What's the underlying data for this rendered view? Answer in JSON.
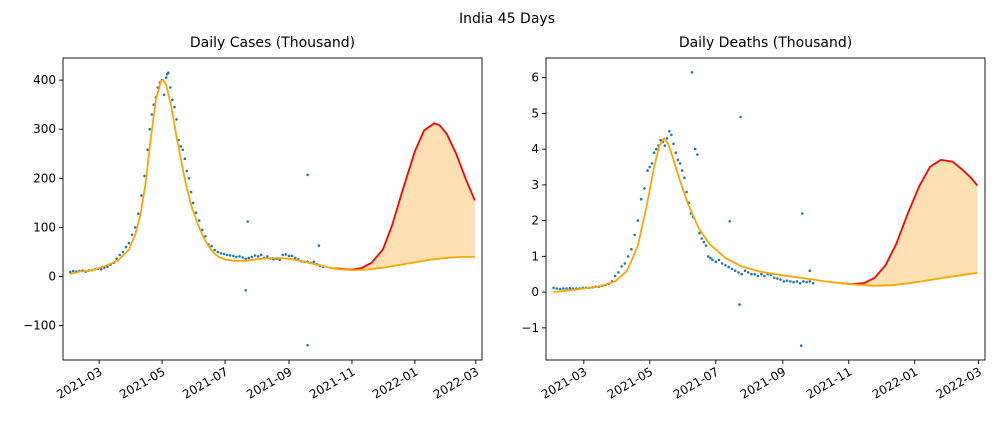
{
  "figure": {
    "suptitle": "India 45 Days"
  },
  "colors": {
    "observed": "#1f77b4",
    "fit": "#ffa500",
    "projection": "#ff0000",
    "band": "#ffe0b3"
  },
  "chart_data": [
    {
      "type": "scatter",
      "title": "Daily Cases (Thousand)",
      "xlabel": "",
      "ylabel": "",
      "x_axis": "date",
      "xlim": [
        "2021-01-25",
        "2022-03-07"
      ],
      "ylim": [
        -170,
        445
      ],
      "yticks": [
        -100,
        0,
        100,
        200,
        300,
        400
      ],
      "xticks": [
        "2021-03-01",
        "2021-05-01",
        "2021-07-01",
        "2021-09-01",
        "2021-11-01",
        "2022-01-01",
        "2022-03-01"
      ],
      "xtick_labels": [
        "2021-03",
        "2021-05",
        "2021-07",
        "2021-09",
        "2021-11",
        "2022-01",
        "2022-03"
      ],
      "observed_points": [
        [
          "2021-02-01",
          9
        ],
        [
          "2021-02-04",
          11
        ],
        [
          "2021-02-07",
          10
        ],
        [
          "2021-02-10",
          11
        ],
        [
          "2021-02-13",
          12
        ],
        [
          "2021-02-16",
          10
        ],
        [
          "2021-02-19",
          12
        ],
        [
          "2021-02-22",
          13
        ],
        [
          "2021-02-25",
          15
        ],
        [
          "2021-02-28",
          16
        ],
        [
          "2021-03-03",
          15
        ],
        [
          "2021-03-06",
          18
        ],
        [
          "2021-03-09",
          20
        ],
        [
          "2021-03-12",
          24
        ],
        [
          "2021-03-15",
          28
        ],
        [
          "2021-03-18",
          36
        ],
        [
          "2021-03-21",
          44
        ],
        [
          "2021-03-24",
          50
        ],
        [
          "2021-03-27",
          60
        ],
        [
          "2021-03-30",
          68
        ],
        [
          "2021-04-02",
          85
        ],
        [
          "2021-04-05",
          100
        ],
        [
          "2021-04-08",
          128
        ],
        [
          "2021-04-11",
          165
        ],
        [
          "2021-04-14",
          205
        ],
        [
          "2021-04-17",
          258
        ],
        [
          "2021-04-19",
          300
        ],
        [
          "2021-04-21",
          330
        ],
        [
          "2021-04-23",
          350
        ],
        [
          "2021-04-25",
          365
        ],
        [
          "2021-04-27",
          385
        ],
        [
          "2021-04-29",
          395
        ],
        [
          "2021-05-01",
          400
        ],
        [
          "2021-05-03",
          370
        ],
        [
          "2021-05-05",
          405
        ],
        [
          "2021-05-06",
          412
        ],
        [
          "2021-05-07",
          415
        ],
        [
          "2021-05-09",
          385
        ],
        [
          "2021-05-11",
          360
        ],
        [
          "2021-05-13",
          345
        ],
        [
          "2021-05-15",
          320
        ],
        [
          "2021-05-17",
          278
        ],
        [
          "2021-05-19",
          265
        ],
        [
          "2021-05-21",
          258
        ],
        [
          "2021-05-23",
          240
        ],
        [
          "2021-05-25",
          215
        ],
        [
          "2021-05-27",
          200
        ],
        [
          "2021-05-29",
          172
        ],
        [
          "2021-05-31",
          150
        ],
        [
          "2021-06-03",
          130
        ],
        [
          "2021-06-06",
          114
        ],
        [
          "2021-06-09",
          95
        ],
        [
          "2021-06-12",
          82
        ],
        [
          "2021-06-15",
          65
        ],
        [
          "2021-06-18",
          62
        ],
        [
          "2021-06-21",
          54
        ],
        [
          "2021-06-24",
          50
        ],
        [
          "2021-06-27",
          47
        ],
        [
          "2021-06-30",
          46
        ],
        [
          "2021-07-03",
          44
        ],
        [
          "2021-07-06",
          43
        ],
        [
          "2021-07-09",
          42
        ],
        [
          "2021-07-12",
          40
        ],
        [
          "2021-07-15",
          41
        ],
        [
          "2021-07-18",
          39
        ],
        [
          "2021-07-21",
          36
        ],
        [
          "2021-07-24",
          38
        ],
        [
          "2021-07-27",
          40
        ],
        [
          "2021-07-30",
          43
        ],
        [
          "2021-08-02",
          41
        ],
        [
          "2021-08-05",
          44
        ],
        [
          "2021-08-08",
          38
        ],
        [
          "2021-08-11",
          41
        ],
        [
          "2021-08-14",
          37
        ],
        [
          "2021-08-17",
          35
        ],
        [
          "2021-08-20",
          36
        ],
        [
          "2021-08-23",
          34
        ],
        [
          "2021-08-26",
          44
        ],
        [
          "2021-08-29",
          45
        ],
        [
          "2021-09-01",
          42
        ],
        [
          "2021-09-04",
          42
        ],
        [
          "2021-09-07",
          38
        ],
        [
          "2021-09-10",
          35
        ],
        [
          "2021-09-13",
          31
        ],
        [
          "2021-09-16",
          30
        ],
        [
          "2021-09-19",
          30
        ],
        [
          "2021-09-22",
          28
        ],
        [
          "2021-09-25",
          30
        ],
        [
          "2021-09-28",
          25
        ],
        [
          "2021-10-01",
          22
        ],
        [
          "2021-10-04",
          20
        ],
        [
          "2021-07-23",
          112
        ],
        [
          "2021-07-21",
          -28
        ],
        [
          "2021-09-19",
          207
        ],
        [
          "2021-09-19",
          -140
        ],
        [
          "2021-09-30",
          63
        ]
      ],
      "fit_curve": [
        [
          "2021-02-01",
          5
        ],
        [
          "2021-02-10",
          10
        ],
        [
          "2021-02-20",
          12
        ],
        [
          "2021-03-01",
          17
        ],
        [
          "2021-03-10",
          24
        ],
        [
          "2021-03-20",
          34
        ],
        [
          "2021-03-30",
          55
        ],
        [
          "2021-04-05",
          85
        ],
        [
          "2021-04-10",
          125
        ],
        [
          "2021-04-15",
          190
        ],
        [
          "2021-04-20",
          280
        ],
        [
          "2021-04-25",
          360
        ],
        [
          "2021-04-30",
          398
        ],
        [
          "2021-05-02",
          400
        ],
        [
          "2021-05-05",
          390
        ],
        [
          "2021-05-10",
          345
        ],
        [
          "2021-05-15",
          285
        ],
        [
          "2021-05-20",
          230
        ],
        [
          "2021-05-25",
          180
        ],
        [
          "2021-05-30",
          140
        ],
        [
          "2021-06-05",
          105
        ],
        [
          "2021-06-10",
          80
        ],
        [
          "2021-06-15",
          62
        ],
        [
          "2021-06-20",
          48
        ],
        [
          "2021-06-25",
          40
        ],
        [
          "2021-07-01",
          35
        ],
        [
          "2021-07-10",
          32
        ],
        [
          "2021-07-20",
          32
        ],
        [
          "2021-08-01",
          35
        ],
        [
          "2021-08-10",
          37
        ],
        [
          "2021-08-20",
          38
        ],
        [
          "2021-09-01",
          36
        ],
        [
          "2021-09-10",
          33
        ],
        [
          "2021-09-20",
          28
        ],
        [
          "2021-10-01",
          23
        ],
        [
          "2021-10-10",
          18
        ],
        [
          "2021-10-20",
          15
        ],
        [
          "2021-11-01",
          13
        ],
        [
          "2021-11-15",
          14
        ],
        [
          "2021-12-01",
          18
        ],
        [
          "2021-12-15",
          23
        ],
        [
          "2022-01-01",
          29
        ],
        [
          "2022-01-15",
          34
        ],
        [
          "2022-02-01",
          38
        ],
        [
          "2022-02-15",
          40
        ],
        [
          "2022-02-28",
          40
        ]
      ],
      "projection_curve": [
        [
          "2021-10-15",
          17
        ],
        [
          "2021-10-25",
          15
        ],
        [
          "2021-11-01",
          14
        ],
        [
          "2021-11-10",
          17
        ],
        [
          "2021-11-20",
          28
        ],
        [
          "2021-12-01",
          55
        ],
        [
          "2021-12-10",
          105
        ],
        [
          "2021-12-20",
          175
        ],
        [
          "2022-01-01",
          255
        ],
        [
          "2022-01-10",
          298
        ],
        [
          "2022-01-20",
          312
        ],
        [
          "2022-01-25",
          308
        ],
        [
          "2022-02-01",
          290
        ],
        [
          "2022-02-10",
          250
        ],
        [
          "2022-02-20",
          195
        ],
        [
          "2022-02-28",
          155
        ]
      ]
    },
    {
      "type": "scatter",
      "title": "Daily Deaths (Thousand)",
      "xlabel": "",
      "ylabel": "",
      "x_axis": "date",
      "xlim": [
        "2021-01-25",
        "2022-03-07"
      ],
      "ylim": [
        -1.9,
        6.55
      ],
      "yticks": [
        -1,
        0,
        1,
        2,
        3,
        4,
        5,
        6
      ],
      "xticks": [
        "2021-03-01",
        "2021-05-01",
        "2021-07-01",
        "2021-09-01",
        "2021-11-01",
        "2022-01-01",
        "2022-03-01"
      ],
      "xtick_labels": [
        "2021-03",
        "2021-05",
        "2021-07",
        "2021-09",
        "2021-11",
        "2022-01",
        "2022-03"
      ],
      "observed_points": [
        [
          "2021-02-01",
          0.12
        ],
        [
          "2021-02-04",
          0.1
        ],
        [
          "2021-02-07",
          0.09
        ],
        [
          "2021-02-10",
          0.1
        ],
        [
          "2021-02-13",
          0.1
        ],
        [
          "2021-02-16",
          0.11
        ],
        [
          "2021-02-19",
          0.1
        ],
        [
          "2021-02-22",
          0.1
        ],
        [
          "2021-02-25",
          0.1
        ],
        [
          "2021-02-28",
          0.12
        ],
        [
          "2021-03-03",
          0.12
        ],
        [
          "2021-03-06",
          0.12
        ],
        [
          "2021-03-09",
          0.13
        ],
        [
          "2021-03-12",
          0.15
        ],
        [
          "2021-03-15",
          0.15
        ],
        [
          "2021-03-18",
          0.18
        ],
        [
          "2021-03-21",
          0.2
        ],
        [
          "2021-03-24",
          0.23
        ],
        [
          "2021-03-27",
          0.3
        ],
        [
          "2021-03-30",
          0.45
        ],
        [
          "2021-04-02",
          0.55
        ],
        [
          "2021-04-05",
          0.72
        ],
        [
          "2021-04-08",
          0.8
        ],
        [
          "2021-04-11",
          1.0
        ],
        [
          "2021-04-14",
          1.2
        ],
        [
          "2021-04-17",
          1.6
        ],
        [
          "2021-04-20",
          2.0
        ],
        [
          "2021-04-23",
          2.6
        ],
        [
          "2021-04-26",
          2.9
        ],
        [
          "2021-04-29",
          3.4
        ],
        [
          "2021-05-01",
          3.5
        ],
        [
          "2021-05-03",
          3.6
        ],
        [
          "2021-05-05",
          3.9
        ],
        [
          "2021-05-07",
          4.0
        ],
        [
          "2021-05-09",
          4.1
        ],
        [
          "2021-05-11",
          4.25
        ],
        [
          "2021-05-13",
          4.2
        ],
        [
          "2021-05-15",
          4.1
        ],
        [
          "2021-05-17",
          4.3
        ],
        [
          "2021-05-19",
          4.5
        ],
        [
          "2021-05-21",
          4.4
        ],
        [
          "2021-05-23",
          4.15
        ],
        [
          "2021-05-25",
          3.9
        ],
        [
          "2021-05-27",
          3.7
        ],
        [
          "2021-05-29",
          3.6
        ],
        [
          "2021-05-31",
          3.4
        ],
        [
          "2021-06-02",
          3.2
        ],
        [
          "2021-06-04",
          2.8
        ],
        [
          "2021-06-06",
          2.5
        ],
        [
          "2021-06-08",
          2.2
        ],
        [
          "2021-06-10",
          2.1
        ],
        [
          "2021-06-12",
          4.0
        ],
        [
          "2021-06-14",
          3.85
        ],
        [
          "2021-06-16",
          1.65
        ],
        [
          "2021-06-18",
          1.5
        ],
        [
          "2021-06-20",
          1.4
        ],
        [
          "2021-06-22",
          1.3
        ],
        [
          "2021-06-24",
          1.0
        ],
        [
          "2021-06-26",
          0.95
        ],
        [
          "2021-06-28",
          0.9
        ],
        [
          "2021-07-01",
          0.85
        ],
        [
          "2021-07-04",
          0.9
        ],
        [
          "2021-07-07",
          0.8
        ],
        [
          "2021-07-10",
          0.75
        ],
        [
          "2021-07-13",
          0.7
        ],
        [
          "2021-07-16",
          0.65
        ],
        [
          "2021-07-19",
          0.6
        ],
        [
          "2021-07-22",
          0.55
        ],
        [
          "2021-07-25",
          0.5
        ],
        [
          "2021-07-28",
          0.6
        ],
        [
          "2021-07-31",
          0.55
        ],
        [
          "2021-08-03",
          0.5
        ],
        [
          "2021-08-06",
          0.5
        ],
        [
          "2021-08-09",
          0.45
        ],
        [
          "2021-08-12",
          0.5
        ],
        [
          "2021-08-15",
          0.45
        ],
        [
          "2021-08-18",
          0.5
        ],
        [
          "2021-08-21",
          0.48
        ],
        [
          "2021-08-24",
          0.4
        ],
        [
          "2021-08-27",
          0.38
        ],
        [
          "2021-08-30",
          0.35
        ],
        [
          "2021-09-02",
          0.3
        ],
        [
          "2021-09-05",
          0.32
        ],
        [
          "2021-09-08",
          0.3
        ],
        [
          "2021-09-11",
          0.28
        ],
        [
          "2021-09-14",
          0.3
        ],
        [
          "2021-09-17",
          0.25
        ],
        [
          "2021-09-20",
          0.3
        ],
        [
          "2021-09-23",
          0.28
        ],
        [
          "2021-09-26",
          0.3
        ],
        [
          "2021-09-29",
          0.25
        ],
        [
          "2021-06-09",
          6.15
        ],
        [
          "2021-07-14",
          1.98
        ],
        [
          "2021-07-24",
          4.9
        ],
        [
          "2021-07-23",
          -0.35
        ],
        [
          "2021-09-19",
          2.2
        ],
        [
          "2021-09-18",
          -1.5
        ],
        [
          "2021-09-26",
          0.6
        ]
      ],
      "fit_curve": [
        [
          "2021-02-01",
          0.0
        ],
        [
          "2021-02-15",
          0.05
        ],
        [
          "2021-03-01",
          0.1
        ],
        [
          "2021-03-15",
          0.15
        ],
        [
          "2021-03-30",
          0.3
        ],
        [
          "2021-04-10",
          0.6
        ],
        [
          "2021-04-20",
          1.3
        ],
        [
          "2021-04-28",
          2.4
        ],
        [
          "2021-05-05",
          3.5
        ],
        [
          "2021-05-10",
          4.1
        ],
        [
          "2021-05-14",
          4.3
        ],
        [
          "2021-05-18",
          4.15
        ],
        [
          "2021-05-23",
          3.7
        ],
        [
          "2021-05-28",
          3.2
        ],
        [
          "2021-06-05",
          2.5
        ],
        [
          "2021-06-15",
          1.8
        ],
        [
          "2021-06-25",
          1.35
        ],
        [
          "2021-07-10",
          0.95
        ],
        [
          "2021-07-25",
          0.72
        ],
        [
          "2021-08-10",
          0.58
        ],
        [
          "2021-08-25",
          0.5
        ],
        [
          "2021-09-10",
          0.43
        ],
        [
          "2021-09-25",
          0.37
        ],
        [
          "2021-10-10",
          0.3
        ],
        [
          "2021-10-25",
          0.25
        ],
        [
          "2021-11-10",
          0.2
        ],
        [
          "2021-11-25",
          0.18
        ],
        [
          "2021-12-10",
          0.19
        ],
        [
          "2021-12-25",
          0.24
        ],
        [
          "2022-01-10",
          0.31
        ],
        [
          "2022-01-25",
          0.39
        ],
        [
          "2022-02-10",
          0.46
        ],
        [
          "2022-02-28",
          0.54
        ]
      ],
      "projection_curve": [
        [
          "2021-10-25",
          0.25
        ],
        [
          "2021-11-05",
          0.22
        ],
        [
          "2021-11-15",
          0.25
        ],
        [
          "2021-11-25",
          0.4
        ],
        [
          "2021-12-05",
          0.75
        ],
        [
          "2021-12-15",
          1.35
        ],
        [
          "2021-12-25",
          2.15
        ],
        [
          "2022-01-05",
          2.95
        ],
        [
          "2022-01-15",
          3.5
        ],
        [
          "2022-01-25",
          3.7
        ],
        [
          "2022-02-05",
          3.65
        ],
        [
          "2022-02-15",
          3.4
        ],
        [
          "2022-02-22",
          3.2
        ],
        [
          "2022-02-28",
          2.98
        ]
      ]
    }
  ]
}
